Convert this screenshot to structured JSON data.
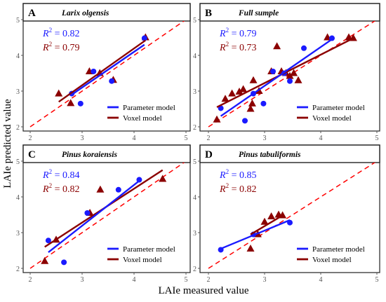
{
  "figure": {
    "xlabel": "LAIe measured value",
    "ylabel": "LAIe predicted value",
    "colors": {
      "parameter": "#1a1aff",
      "voxel": "#8b0000",
      "reference": "#ff0000",
      "panel_border": "#222222",
      "tick": "#555555"
    }
  },
  "chart_data": [
    {
      "type": "scatter",
      "letter": "A",
      "title": "Larix olgensis",
      "xlim": [
        2,
        5
      ],
      "ylim": [
        2,
        5
      ],
      "xticks": [
        2,
        3,
        4,
        5
      ],
      "yticks": [
        2,
        3,
        4,
        5
      ],
      "r2_parameter": "0.82",
      "r2_voxel": "0.79",
      "legend": [
        "Parameter model",
        "Voxel model"
      ],
      "parameter_points": [
        [
          2.8,
          2.93
        ],
        [
          2.97,
          2.65
        ],
        [
          3.22,
          3.55
        ],
        [
          3.57,
          3.28
        ],
        [
          4.2,
          4.48
        ]
      ],
      "voxel_points": [
        [
          2.55,
          2.93
        ],
        [
          2.78,
          2.66
        ],
        [
          3.14,
          3.55
        ],
        [
          3.34,
          3.5
        ],
        [
          3.6,
          3.31
        ],
        [
          4.22,
          4.5
        ]
      ],
      "parameter_line": [
        [
          2.8,
          2.9
        ],
        [
          4.2,
          4.3
        ]
      ],
      "voxel_line": [
        [
          2.55,
          2.7
        ],
        [
          4.22,
          4.42
        ]
      ],
      "reference_line": [
        [
          2,
          2
        ],
        [
          5,
          5
        ]
      ]
    },
    {
      "type": "scatter",
      "letter": "B",
      "title": "Full sumple",
      "xlim": [
        2,
        5
      ],
      "ylim": [
        2,
        5
      ],
      "xticks": [
        2,
        3,
        4,
        5
      ],
      "yticks": [
        2,
        3,
        4,
        5
      ],
      "r2_parameter": "0.79",
      "r2_voxel": "0.73",
      "legend": [
        "Parameter model",
        "Voxel model"
      ],
      "parameter_points": [
        [
          2.22,
          2.52
        ],
        [
          2.65,
          2.17
        ],
        [
          2.8,
          2.93
        ],
        [
          2.98,
          2.65
        ],
        [
          3.15,
          3.55
        ],
        [
          3.35,
          3.5
        ],
        [
          3.45,
          3.28
        ],
        [
          3.7,
          4.2
        ],
        [
          4.2,
          4.48
        ]
      ],
      "voxel_points": [
        [
          2.15,
          2.2
        ],
        [
          2.3,
          2.78
        ],
        [
          2.42,
          2.93
        ],
        [
          2.55,
          2.98
        ],
        [
          2.62,
          3.05
        ],
        [
          2.75,
          2.5
        ],
        [
          2.78,
          2.65
        ],
        [
          2.8,
          3.3
        ],
        [
          2.9,
          3.0
        ],
        [
          3.12,
          3.55
        ],
        [
          3.22,
          4.25
        ],
        [
          3.3,
          3.55
        ],
        [
          3.38,
          3.5
        ],
        [
          3.45,
          3.42
        ],
        [
          3.52,
          3.5
        ],
        [
          3.6,
          3.3
        ],
        [
          4.12,
          4.5
        ],
        [
          4.5,
          4.5
        ],
        [
          4.58,
          4.48
        ]
      ],
      "parameter_line": [
        [
          2.22,
          2.3
        ],
        [
          4.2,
          4.45
        ]
      ],
      "voxel_line": [
        [
          2.15,
          2.55
        ],
        [
          4.58,
          4.48
        ]
      ],
      "reference_line": [
        [
          2,
          2
        ],
        [
          5,
          5
        ]
      ]
    },
    {
      "type": "scatter",
      "letter": "C",
      "title": "Pinus koraiensis",
      "xlim": [
        2,
        5
      ],
      "ylim": [
        2,
        5
      ],
      "xticks": [
        2,
        3,
        4,
        5
      ],
      "yticks": [
        2,
        3,
        4,
        5
      ],
      "r2_parameter": "0.84",
      "r2_voxel": "0.82",
      "legend": [
        "Parameter model",
        "Voxel model"
      ],
      "parameter_points": [
        [
          2.35,
          2.78
        ],
        [
          2.65,
          2.17
        ],
        [
          3.1,
          3.55
        ],
        [
          3.7,
          4.2
        ],
        [
          4.1,
          4.48
        ]
      ],
      "voxel_points": [
        [
          2.28,
          2.2
        ],
        [
          2.5,
          2.8
        ],
        [
          3.15,
          3.55
        ],
        [
          3.35,
          4.2
        ],
        [
          4.55,
          4.5
        ]
      ],
      "parameter_line": [
        [
          2.35,
          2.45
        ],
        [
          4.1,
          4.45
        ]
      ],
      "voxel_line": [
        [
          2.28,
          2.6
        ],
        [
          4.55,
          4.75
        ]
      ],
      "reference_line": [
        [
          2,
          2
        ],
        [
          5,
          5
        ]
      ]
    },
    {
      "type": "scatter",
      "letter": "D",
      "title": "Pinus tabuliformis",
      "xlim": [
        2,
        5
      ],
      "ylim": [
        2,
        5
      ],
      "xticks": [
        2,
        3,
        4,
        5
      ],
      "yticks": [
        2,
        3,
        4,
        5
      ],
      "r2_parameter": "0.85",
      "r2_voxel": "0.82",
      "legend": [
        "Parameter model",
        "Voxel model"
      ],
      "parameter_points": [
        [
          2.22,
          2.52
        ],
        [
          2.8,
          2.95
        ],
        [
          3.45,
          3.28
        ]
      ],
      "voxel_points": [
        [
          2.75,
          2.55
        ],
        [
          2.88,
          2.95
        ],
        [
          3.0,
          3.3
        ],
        [
          3.12,
          3.45
        ],
        [
          3.25,
          3.5
        ],
        [
          3.32,
          3.48
        ]
      ],
      "parameter_line": [
        [
          2.22,
          2.55
        ],
        [
          3.45,
          3.35
        ]
      ],
      "voxel_line": [
        [
          2.75,
          2.95
        ],
        [
          3.32,
          3.48
        ]
      ],
      "reference_line": [
        [
          2,
          2
        ],
        [
          5,
          5
        ]
      ]
    }
  ]
}
